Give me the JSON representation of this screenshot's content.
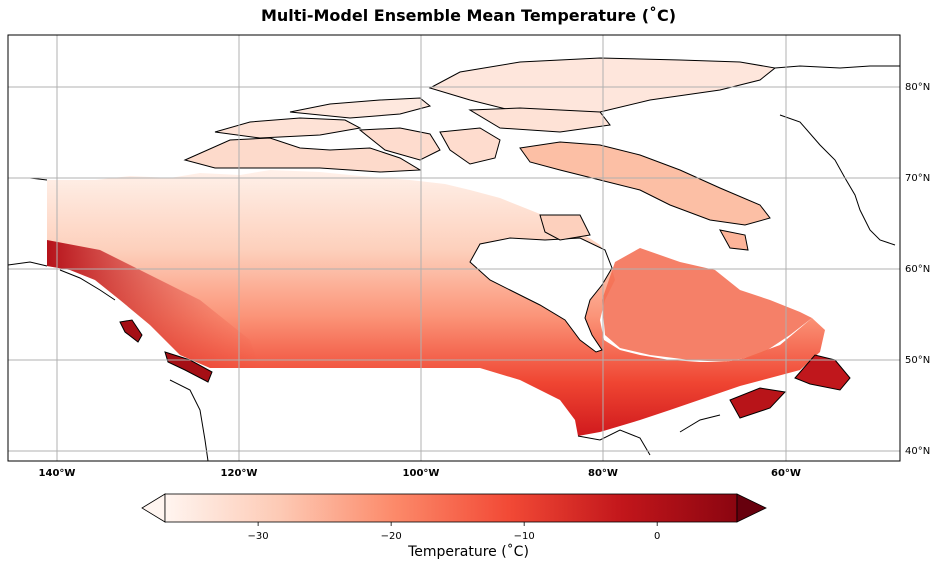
{
  "title": "Multi-Model Ensemble Mean Temperature (˚C)",
  "map": {
    "lon_labels": [
      "140°W",
      "120°W",
      "100°W",
      "80°W",
      "60°W"
    ],
    "lat_labels": [
      "80°N",
      "70°N",
      "60°N",
      "50°N",
      "40°N"
    ],
    "gridlines": true,
    "region": "Canada"
  },
  "colorbar": {
    "label": "Temperature (˚C)",
    "ticks": [
      "−30",
      "−20",
      "−10",
      "0"
    ],
    "tick_values": [
      -30,
      -20,
      -10,
      0
    ],
    "range": [
      -37,
      6
    ],
    "extend": "both",
    "colormap": "Reds",
    "colors": [
      "#fff5f0",
      "#fdcab5",
      "#fc8a6a",
      "#f24a36",
      "#c2161b",
      "#67000d"
    ]
  }
}
